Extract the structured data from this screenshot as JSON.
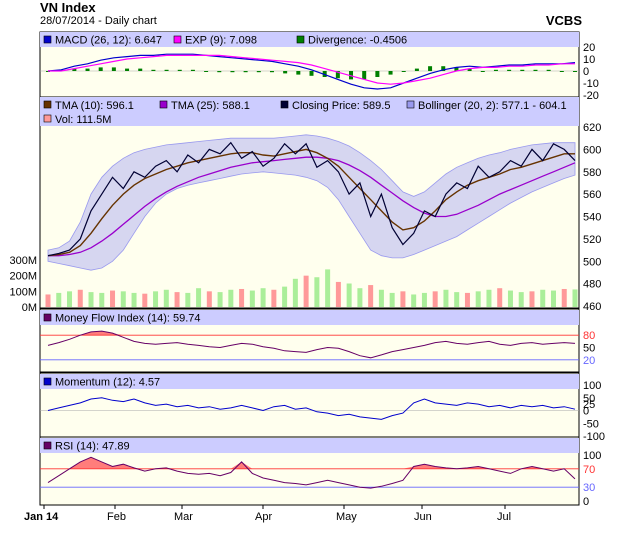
{
  "header": {
    "title": "VN Index",
    "subtitle": "28/07/2014 - Daily chart",
    "brand": "VCBS"
  },
  "chart_data": [
    {
      "type": "line",
      "panel": "macd",
      "legend": [
        {
          "label": "MACD (26, 12): 6.647",
          "color": "#0000cc"
        },
        {
          "label": "EXP (9): 7.098",
          "color": "#ff00ff"
        },
        {
          "label": "Divergence: -0.4506",
          "color": "#008000"
        }
      ],
      "ylim": [
        -20,
        20
      ],
      "yticks": [
        "20",
        "10",
        "0",
        "-10",
        "-20"
      ],
      "series": [
        {
          "name": "MACD",
          "color": "#0000cc",
          "values": [
            0,
            1,
            4,
            6,
            9,
            11,
            12,
            13,
            13,
            14,
            14,
            14,
            13,
            12,
            11,
            10,
            9,
            8,
            6,
            4,
            1,
            -3,
            -7,
            -11,
            -14,
            -15,
            -14,
            -10,
            -6,
            -2,
            1,
            3,
            4,
            3,
            4,
            5,
            5,
            6,
            6,
            6,
            7
          ]
        },
        {
          "name": "EXP",
          "color": "#ff00ff",
          "values": [
            0,
            0,
            2,
            4,
            6,
            8,
            10,
            11,
            12,
            13,
            13,
            13,
            13,
            13,
            12,
            11,
            10,
            9,
            8,
            7,
            5,
            2,
            -1,
            -4,
            -7,
            -10,
            -11,
            -10,
            -8,
            -6,
            -3,
            0,
            2,
            3,
            3,
            4,
            4,
            5,
            5,
            6,
            6
          ]
        },
        {
          "name": "Divergence",
          "color": "#008000",
          "values": [
            0,
            1,
            2,
            2,
            3,
            3,
            2,
            2,
            1,
            1,
            1,
            1,
            0,
            -1,
            -1,
            -1,
            -1,
            -1,
            -2,
            -3,
            -4,
            -5,
            -6,
            -7,
            -7,
            -5,
            -3,
            0,
            2,
            4,
            4,
            3,
            2,
            0,
            1,
            1,
            1,
            1,
            1,
            0,
            0
          ]
        }
      ]
    },
    {
      "type": "line",
      "panel": "price",
      "legend": [
        {
          "label": "TMA (10): 596.1",
          "color": "#663300"
        },
        {
          "label": "TMA (25): 588.1",
          "color": "#9900cc"
        },
        {
          "label": "Closing Price: 589.5",
          "color": "#000033"
        },
        {
          "label": "Bollinger (20, 2): 577.1 - 604.1",
          "color": "#9999ee"
        },
        {
          "label": "Vol: 111.5M",
          "color": "#ff9999"
        }
      ],
      "ylim": [
        460,
        620
      ],
      "yticks": [
        "620",
        "600",
        "580",
        "560",
        "540",
        "520",
        "500",
        "480",
        "460"
      ],
      "volume_ylim": [
        0,
        300
      ],
      "volume_ticks": [
        "300M",
        "200M",
        "100M",
        "0M"
      ],
      "xticks": [
        "Jan 14",
        "Feb",
        "Mar",
        "Apr",
        "May",
        "Jun",
        "Jul"
      ],
      "series": [
        {
          "name": "Closing Price",
          "color": "#000033",
          "values": [
            505,
            507,
            510,
            520,
            545,
            560,
            575,
            565,
            580,
            575,
            585,
            590,
            580,
            595,
            588,
            600,
            596,
            606,
            592,
            598,
            585,
            592,
            605,
            596,
            605,
            584,
            590,
            580,
            560,
            570,
            540,
            560,
            530,
            515,
            525,
            545,
            540,
            560,
            570,
            565,
            585,
            575,
            580,
            590,
            585,
            600,
            590,
            605,
            600,
            590
          ]
        },
        {
          "name": "TMA (10)",
          "color": "#663300",
          "values": [
            505,
            506,
            508,
            514,
            525,
            538,
            550,
            560,
            568,
            574,
            578,
            582,
            585,
            588,
            590,
            592,
            594,
            596,
            597,
            597,
            595,
            594,
            596,
            598,
            600,
            597,
            592,
            585,
            575,
            565,
            555,
            545,
            535,
            528,
            530,
            536,
            545,
            555,
            562,
            568,
            572,
            575,
            578,
            582,
            584,
            587,
            590,
            593,
            596,
            596
          ]
        },
        {
          "name": "TMA (25)",
          "color": "#9900cc",
          "values": [
            505,
            505,
            506,
            508,
            512,
            518,
            525,
            533,
            541,
            549,
            556,
            562,
            567,
            571,
            575,
            578,
            581,
            584,
            586,
            588,
            589,
            590,
            591,
            592,
            593,
            593,
            592,
            590,
            586,
            581,
            575,
            568,
            561,
            554,
            548,
            543,
            540,
            540,
            542,
            546,
            550,
            555,
            560,
            564,
            568,
            572,
            576,
            580,
            584,
            588
          ]
        },
        {
          "name": "Bollinger upper",
          "color": "#9999ee",
          "values": [
            510,
            512,
            518,
            535,
            560,
            575,
            585,
            592,
            597,
            600,
            602,
            604,
            605,
            606,
            607,
            608,
            609,
            610,
            610,
            610,
            610,
            610,
            611,
            612,
            613,
            612,
            610,
            607,
            603,
            597,
            590,
            582,
            572,
            562,
            558,
            562,
            570,
            578,
            584,
            588,
            592,
            595,
            597,
            600,
            602,
            604,
            605,
            606,
            606,
            606
          ]
        },
        {
          "name": "Bollinger lower",
          "color": "#9999ee",
          "values": [
            500,
            498,
            496,
            494,
            492,
            494,
            500,
            510,
            525,
            540,
            552,
            560,
            565,
            568,
            570,
            572,
            574,
            576,
            578,
            579,
            580,
            579,
            578,
            577,
            575,
            572,
            566,
            555,
            540,
            525,
            510,
            505,
            503,
            503,
            506,
            510,
            514,
            518,
            522,
            528,
            534,
            540,
            546,
            552,
            557,
            562,
            566,
            570,
            574,
            577
          ]
        },
        {
          "name": "Vol",
          "color": "#ff9999",
          "values": [
            80,
            90,
            100,
            110,
            95,
            90,
            105,
            100,
            90,
            85,
            100,
            110,
            95,
            90,
            120,
            100,
            95,
            110,
            115,
            105,
            120,
            110,
            130,
            180,
            200,
            190,
            240,
            160,
            150,
            120,
            140,
            110,
            90,
            100,
            80,
            90,
            100,
            110,
            95,
            90,
            100,
            110,
            120,
            105,
            95,
            100,
            110,
            105,
            115,
            112
          ]
        }
      ]
    },
    {
      "type": "line",
      "panel": "mfi",
      "legend": [
        {
          "label": "Money Flow Index (14): 59.74",
          "color": "#660066"
        }
      ],
      "ylim": [
        0,
        100
      ],
      "yticks": [
        "80",
        "50",
        "20"
      ],
      "thresholds": [
        80,
        20
      ],
      "series": [
        {
          "name": "Money Flow Index",
          "color": "#660066",
          "values": [
            55,
            62,
            70,
            80,
            88,
            90,
            85,
            75,
            65,
            60,
            58,
            60,
            62,
            58,
            55,
            52,
            50,
            55,
            60,
            58,
            52,
            48,
            42,
            40,
            38,
            45,
            50,
            48,
            40,
            30,
            25,
            32,
            40,
            45,
            50,
            55,
            62,
            65,
            60,
            58,
            62,
            65,
            58,
            55,
            60,
            62,
            58,
            60,
            62,
            60
          ]
        }
      ]
    },
    {
      "type": "line",
      "panel": "momentum",
      "legend": [
        {
          "label": "Momentum (12): 4.57",
          "color": "#0000cc"
        }
      ],
      "ylim": [
        -100,
        100
      ],
      "yticks": [
        "100",
        "50",
        "25",
        "0",
        "-50",
        "-100"
      ],
      "series": [
        {
          "name": "Momentum",
          "color": "#0000cc",
          "values": [
            0,
            10,
            20,
            30,
            45,
            50,
            40,
            35,
            45,
            30,
            20,
            25,
            15,
            20,
            10,
            15,
            5,
            10,
            20,
            10,
            0,
            15,
            20,
            5,
            10,
            -5,
            -10,
            -20,
            -15,
            -25,
            -30,
            -35,
            -20,
            -10,
            30,
            45,
            30,
            25,
            20,
            30,
            25,
            15,
            20,
            10,
            20,
            15,
            20,
            10,
            15,
            5
          ]
        }
      ]
    },
    {
      "type": "line",
      "panel": "rsi",
      "legend": [
        {
          "label": "RSI (14): 47.89",
          "color": "#660066"
        }
      ],
      "ylim": [
        0,
        100
      ],
      "yticks": [
        "100",
        "70",
        "30",
        "0"
      ],
      "thresholds": [
        70,
        30
      ],
      "series": [
        {
          "name": "RSI",
          "color": "#660066",
          "values": [
            40,
            55,
            70,
            85,
            95,
            85,
            75,
            80,
            72,
            65,
            70,
            72,
            65,
            60,
            58,
            60,
            55,
            62,
            85,
            60,
            50,
            45,
            40,
            38,
            35,
            40,
            45,
            40,
            35,
            30,
            28,
            32,
            38,
            45,
            75,
            80,
            75,
            72,
            70,
            72,
            75,
            70,
            65,
            60,
            70,
            75,
            70,
            65,
            70,
            48
          ]
        }
      ]
    }
  ]
}
